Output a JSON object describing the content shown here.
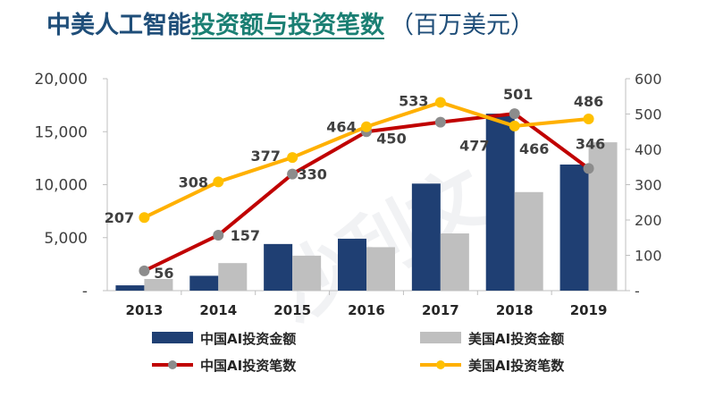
{
  "title": {
    "part1": "中美人工智能",
    "highlight": "投资额与投资笔数",
    "unit": "（百万美元）"
  },
  "chart_data": {
    "type": "bar",
    "categories": [
      "2013",
      "2014",
      "2015",
      "2016",
      "2017",
      "2018",
      "2019"
    ],
    "series": [
      {
        "name": "中国AI投资金额",
        "type": "bar",
        "axis": "left",
        "color": "#1f3f73",
        "values": [
          500,
          1400,
          4400,
          4900,
          10100,
          16700,
          11900
        ]
      },
      {
        "name": "美国AI投资金额",
        "type": "bar",
        "axis": "left",
        "color": "#bfbfbf",
        "values": [
          1100,
          2600,
          3300,
          4100,
          5400,
          9300,
          14000
        ]
      },
      {
        "name": "中国AI投资笔数",
        "type": "line",
        "axis": "right",
        "color": "#c00000",
        "marker_color": "#8c8c8c",
        "values": [
          56,
          157,
          330,
          450,
          477,
          501,
          346
        ]
      },
      {
        "name": "美国AI投资笔数",
        "type": "line",
        "axis": "right",
        "color": "#ffb000",
        "marker_color": "#ffc000",
        "values": [
          207,
          308,
          377,
          464,
          533,
          466,
          486
        ]
      }
    ],
    "y_left": {
      "ylim": [
        0,
        20000
      ],
      "ticks": [
        0,
        5000,
        10000,
        15000,
        20000
      ],
      "tick_labels": [
        "-",
        "5,000",
        "10,000",
        "15,000",
        "20,000"
      ]
    },
    "y_right": {
      "ylim": [
        0,
        600
      ],
      "ticks": [
        0,
        100,
        200,
        300,
        400,
        500,
        600
      ],
      "tick_labels": [
        "-",
        "100",
        "200",
        "300",
        "400",
        "500",
        "600"
      ]
    },
    "data_labels": {
      "中国AI投资笔数": [
        "56",
        "157",
        "330",
        "450",
        "477",
        "501",
        "346"
      ],
      "美国AI投资笔数": [
        "207",
        "308",
        "377",
        "464",
        "533",
        "466",
        "486"
      ]
    },
    "legend": {
      "position": "bottom",
      "items": [
        "中国AI投资金额",
        "美国AI投资金额",
        "中国AI投资笔数",
        "美国AI投资笔数"
      ]
    },
    "grid": false,
    "watermark": "沙利文"
  }
}
